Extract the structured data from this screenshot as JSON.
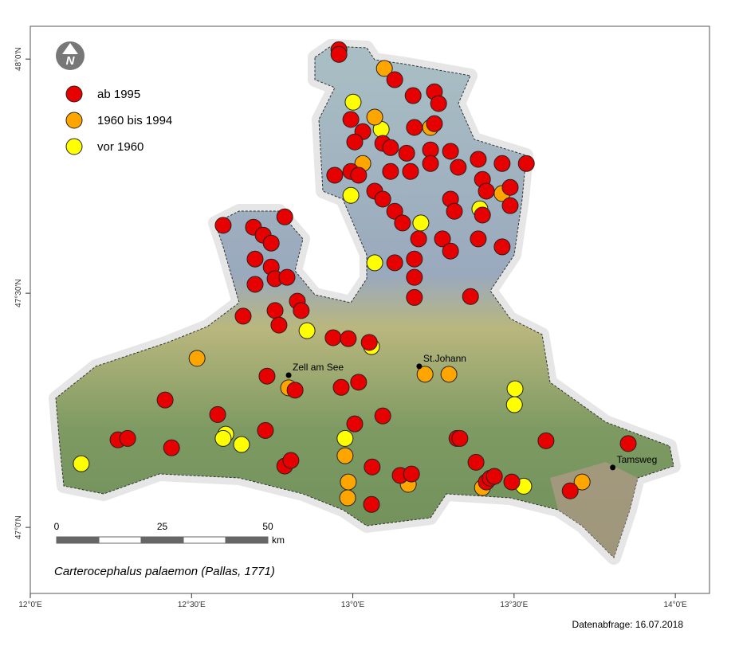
{
  "chart_data": {
    "type": "scatter",
    "title": "Carterocephalus palaemon (Pallas, 1771)",
    "footer": "Datenabfrage: 16.07.2018",
    "xlim": [
      12.0,
      14.106
    ],
    "ylim": [
      46.859,
      48.07
    ],
    "xticks": [
      {
        "value": 12.0,
        "label": "12°0'E"
      },
      {
        "value": 12.5,
        "label": "12°30'E"
      },
      {
        "value": 13.0,
        "label": "13°0'E"
      },
      {
        "value": 13.5,
        "label": "13°30'E"
      },
      {
        "value": 14.0,
        "label": "14°0'E"
      }
    ],
    "yticks": [
      {
        "value": 47.0,
        "label": "47°0'N"
      },
      {
        "value": 47.5,
        "label": "47°30'N"
      },
      {
        "value": 48.0,
        "label": "48°0'N"
      }
    ],
    "series": [
      {
        "name": "ab 1995",
        "color": "#e60000",
        "x": [
          12.957,
          12.957,
          13.13,
          13.187,
          13.253,
          13.266,
          13.191,
          13.253,
          12.994,
          13.031,
          13.006,
          13.093,
          13.117,
          13.167,
          13.241,
          13.303,
          13.389,
          13.463,
          13.538,
          12.944,
          12.994,
          13.018,
          13.068,
          13.117,
          13.179,
          13.241,
          13.327,
          13.402,
          13.414,
          13.488,
          13.303,
          13.315,
          13.402,
          13.488,
          13.093,
          13.13,
          13.154,
          13.204,
          13.278,
          13.389,
          13.463,
          13.303,
          13.191,
          13.13,
          13.191,
          13.191,
          13.365,
          12.598,
          12.692,
          12.722,
          12.747,
          12.789,
          12.697,
          12.747,
          12.759,
          12.697,
          12.796,
          12.828,
          12.84,
          12.759,
          12.66,
          12.771,
          12.939,
          12.986,
          13.051,
          12.734,
          12.821,
          12.964,
          13.018,
          13.093,
          13.006,
          12.418,
          12.581,
          12.729,
          12.272,
          12.302,
          12.438,
          12.789,
          12.808,
          13.06,
          13.147,
          13.182,
          13.058,
          13.323,
          13.332,
          13.382,
          13.414,
          13.426,
          13.439,
          13.493,
          13.599,
          13.674,
          13.854
        ],
        "values": [
          48.02,
          48.01,
          47.956,
          47.922,
          47.93,
          47.905,
          47.854,
          47.862,
          47.871,
          47.845,
          47.823,
          47.82,
          47.811,
          47.799,
          47.806,
          47.803,
          47.786,
          47.777,
          47.777,
          47.752,
          47.76,
          47.752,
          47.718,
          47.76,
          47.76,
          47.777,
          47.769,
          47.743,
          47.718,
          47.726,
          47.701,
          47.675,
          47.667,
          47.687,
          47.701,
          47.675,
          47.65,
          47.616,
          47.616,
          47.616,
          47.599,
          47.59,
          47.573,
          47.565,
          47.534,
          47.491,
          47.493,
          47.645,
          47.641,
          47.624,
          47.607,
          47.663,
          47.573,
          47.556,
          47.531,
          47.519,
          47.534,
          47.483,
          47.463,
          47.463,
          47.451,
          47.432,
          47.405,
          47.403,
          47.395,
          47.323,
          47.293,
          47.299,
          47.31,
          47.238,
          47.221,
          47.272,
          47.241,
          47.207,
          47.187,
          47.19,
          47.17,
          47.131,
          47.143,
          47.129,
          47.111,
          47.114,
          47.049,
          47.19,
          47.19,
          47.139,
          47.097,
          47.105,
          47.109,
          47.097,
          47.185,
          47.078,
          47.179
        ]
      },
      {
        "name": "1960 bis 1994",
        "color": "#ffa500",
        "x": [
          13.098,
          13.068,
          13.241,
          13.031,
          13.463,
          12.517,
          13.224,
          13.298,
          12.801,
          12.976,
          12.986,
          12.984,
          13.172,
          13.402,
          13.711
        ],
        "values": [
          47.98,
          47.876,
          47.854,
          47.777,
          47.713,
          47.361,
          47.327,
          47.327,
          47.298,
          47.153,
          47.097,
          47.063,
          47.092,
          47.085,
          47.097
        ]
      },
      {
        "name": "vor 1960",
        "color": "#ffff00",
        "x": [
          13.001,
          13.088,
          12.994,
          13.068,
          13.211,
          13.394,
          12.858,
          13.058,
          13.503,
          13.501,
          12.606,
          12.598,
          12.655,
          12.976,
          12.158,
          13.53
        ],
        "values": [
          47.908,
          47.85,
          47.709,
          47.565,
          47.65,
          47.68,
          47.42,
          47.386,
          47.296,
          47.262,
          47.199,
          47.19,
          47.177,
          47.19,
          47.136,
          47.088
        ]
      }
    ],
    "places": [
      {
        "name": "Zell am See",
        "x": 12.801,
        "y": 47.325
      },
      {
        "name": "St.Johann",
        "x": 13.206,
        "y": 47.344
      },
      {
        "name": "Tamsweg",
        "x": 13.806,
        "y": 47.128
      }
    ],
    "scalebar": {
      "ticks": [
        0,
        25,
        50
      ],
      "unit": "km"
    }
  }
}
